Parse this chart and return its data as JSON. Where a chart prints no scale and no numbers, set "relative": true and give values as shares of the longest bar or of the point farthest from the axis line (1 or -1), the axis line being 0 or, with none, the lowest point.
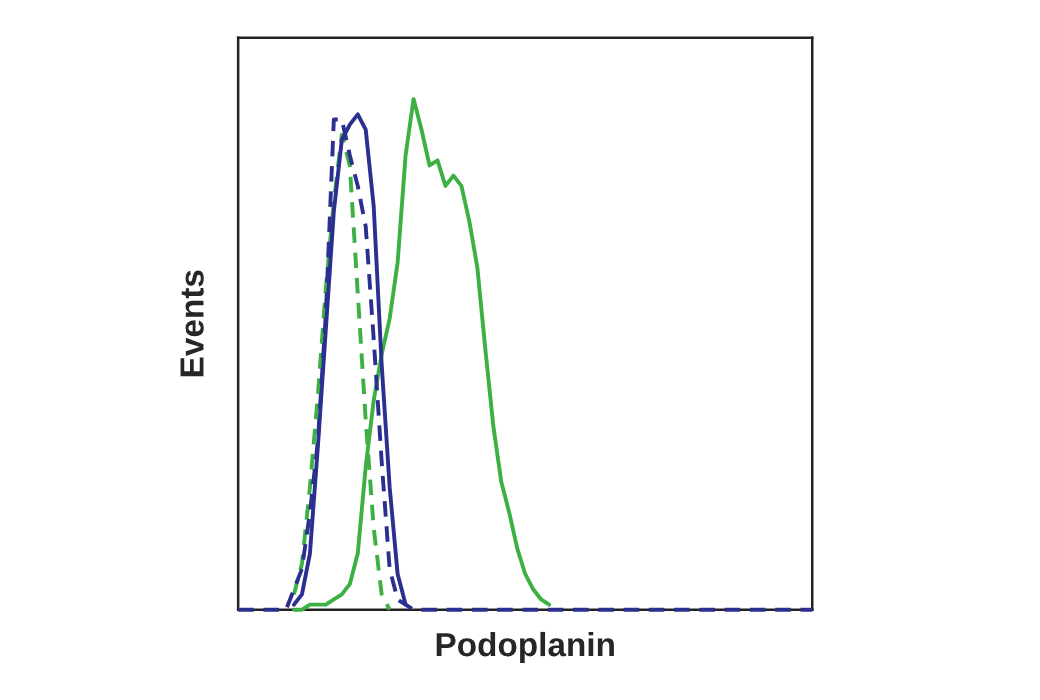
{
  "chart_data": {
    "type": "line",
    "xlabel": "Podoplanin",
    "ylabel": "Events",
    "relative": true,
    "legend": false,
    "grid": false,
    "marker": "none",
    "tick_labels": false,
    "categories": [
      null,
      null,
      null,
      null,
      null,
      null,
      null,
      null,
      null,
      null,
      null,
      null,
      null,
      null,
      null,
      null,
      null,
      null,
      null,
      null,
      null,
      null,
      null,
      null,
      null,
      null,
      null,
      null,
      null,
      null,
      null,
      null,
      null,
      null,
      null,
      null,
      null,
      null,
      null,
      null,
      null,
      null,
      null,
      null,
      null,
      null,
      null,
      null,
      null,
      null,
      null,
      null,
      null,
      null,
      null,
      null,
      null,
      null,
      null,
      null,
      null,
      null,
      null,
      null,
      null,
      null,
      null,
      null,
      null,
      null,
      null,
      null,
      null
    ],
    "series": [
      {
        "color": "#3cb043",
        "line_style": "solid",
        "values": [
          null,
          null,
          null,
          null,
          null,
          null,
          null,
          0,
          0,
          0.01,
          0.01,
          0.01,
          0.02,
          0.03,
          0.05,
          0.11,
          0.28,
          0.41,
          0.5,
          0.57,
          0.68,
          0.89,
          1,
          0.94,
          0.87,
          0.88,
          0.83,
          0.85,
          0.83,
          0.76,
          0.67,
          0.51,
          0.36,
          0.25,
          0.19,
          0.12,
          0.07,
          0.04,
          0.02,
          0.01,
          null,
          null,
          null,
          null,
          null,
          null,
          null,
          null,
          null,
          null,
          null,
          null,
          null,
          null,
          null,
          null,
          null,
          null,
          null,
          null,
          null,
          null,
          null,
          null,
          null,
          null,
          null,
          null,
          null,
          null,
          null,
          null,
          null
        ]
      },
      {
        "color": "#3cb043",
        "line_style": "dashed",
        "values": [
          null,
          null,
          null,
          null,
          null,
          null,
          null,
          0.03,
          0.09,
          0.24,
          0.42,
          0.63,
          0.8,
          0.93,
          0.87,
          0.62,
          0.37,
          0.16,
          0.03,
          0,
          null,
          null,
          null,
          null,
          null,
          null,
          null,
          null,
          null,
          null,
          null,
          null,
          null,
          null,
          null,
          null,
          null,
          null,
          null,
          null,
          null,
          null,
          null,
          null,
          null,
          null,
          null,
          null,
          null,
          null,
          null,
          null,
          null,
          null,
          null,
          null,
          null,
          null,
          null,
          null,
          null,
          null,
          null,
          null,
          null,
          null,
          null,
          null,
          null,
          null,
          null,
          null,
          null
        ]
      },
      {
        "color": "#2b2f8f",
        "line_style": "solid",
        "values": [
          null,
          null,
          null,
          null,
          null,
          null,
          null,
          0.01,
          0.03,
          0.11,
          0.32,
          0.55,
          0.78,
          0.92,
          0.95,
          0.97,
          0.94,
          0.79,
          0.48,
          0.24,
          0.07,
          0.01,
          null,
          null,
          null,
          null,
          null,
          null,
          null,
          null,
          null,
          null,
          null,
          null,
          null,
          null,
          null,
          null,
          null,
          null,
          null,
          null,
          null,
          null,
          null,
          null,
          null,
          null,
          null,
          null,
          null,
          null,
          null,
          null,
          null,
          null,
          null,
          null,
          null,
          null,
          null,
          null,
          null,
          null,
          null,
          null,
          null,
          null,
          null,
          null,
          null,
          null,
          null
        ]
      },
      {
        "color": "#2b2f8f",
        "line_style": "dashed",
        "values": [
          0,
          0,
          0,
          0,
          0,
          0,
          0,
          0.04,
          0.08,
          0.19,
          0.33,
          0.58,
          0.96,
          0.96,
          0.89,
          0.83,
          0.75,
          0.53,
          0.29,
          0.08,
          0.02,
          0.01,
          0,
          0,
          0,
          0,
          0,
          0,
          0,
          0,
          0,
          0,
          0,
          0,
          0,
          0,
          0,
          0,
          0,
          0,
          0,
          0,
          0,
          0,
          0,
          0,
          0,
          0,
          0,
          0,
          0,
          0,
          0,
          0,
          0,
          0,
          0,
          0,
          0,
          0,
          0,
          0,
          0,
          0,
          0,
          0,
          0,
          0,
          0,
          0,
          0,
          0,
          0
        ]
      }
    ]
  }
}
